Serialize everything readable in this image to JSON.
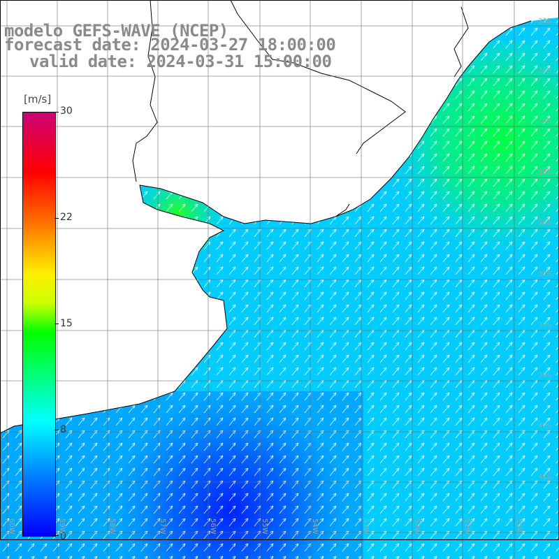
{
  "title": {
    "line1": "modelo GEFS-WAVE (NCEP)",
    "line2": "forecast date: 2024-03-27 18:00:00",
    "line3": "valid date: 2024-03-31 15:00:00"
  },
  "colorbar": {
    "units": "[m/s]",
    "ticks": [
      "30",
      "22",
      "15",
      "8",
      "0"
    ],
    "tick_values": [
      30,
      22,
      15,
      8,
      0
    ],
    "range": [
      0,
      30
    ],
    "stops": [
      "#0000ff",
      "#00aaff",
      "#00ffff",
      "#00ff00",
      "#ffff00",
      "#ff8800",
      "#ff0000",
      "#cc0077"
    ]
  },
  "axes": {
    "lat_labels": [
      "32S",
      "33S",
      "34S",
      "35S",
      "36S",
      "37S",
      "38S",
      "39S",
      "40S",
      "41S"
    ],
    "lon_labels": [
      "60W",
      "59W",
      "58W",
      "57W",
      "56W",
      "55W",
      "54W",
      "53W",
      "52W",
      "51W",
      "50W"
    ]
  }
}
